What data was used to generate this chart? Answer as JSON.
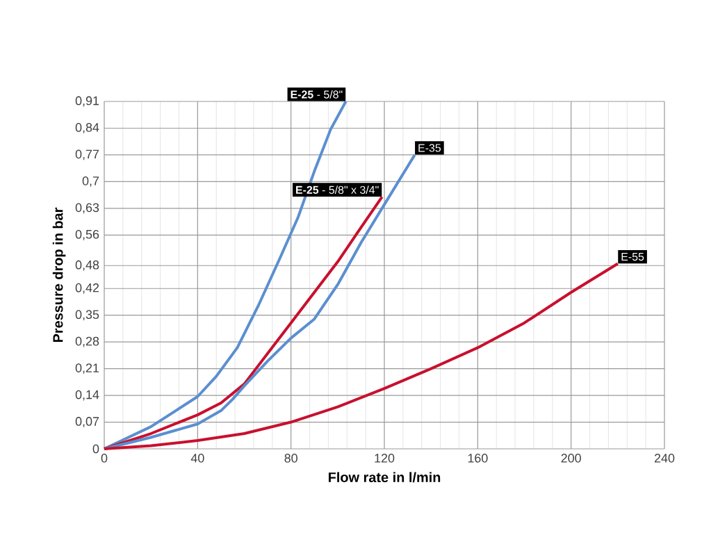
{
  "chart_data": {
    "type": "line",
    "xlabel": "Flow rate in l/min",
    "ylabel": "Pressure drop in bar",
    "xlim": [
      0,
      240
    ],
    "ylim": [
      0,
      0.91
    ],
    "xticks": [
      0,
      40,
      80,
      120,
      160,
      200,
      240
    ],
    "yticks": [
      {
        "value": 0,
        "label": "0"
      },
      {
        "value": 0.07,
        "label": "0,07"
      },
      {
        "value": 0.14,
        "label": "0,14"
      },
      {
        "value": 0.21,
        "label": "0,21"
      },
      {
        "value": 0.28,
        "label": "0,28"
      },
      {
        "value": 0.35,
        "label": "0,35"
      },
      {
        "value": 0.42,
        "label": "0,42"
      },
      {
        "value": 0.48,
        "label": "0,48"
      },
      {
        "value": 0.56,
        "label": "0,56"
      },
      {
        "value": 0.63,
        "label": "0,63"
      },
      {
        "value": 0.7,
        "label": "0,7"
      },
      {
        "value": 0.77,
        "label": "0,77"
      },
      {
        "value": 0.84,
        "label": "0,84"
      },
      {
        "value": 0.91,
        "label": "0,91"
      }
    ],
    "grid": true,
    "marker": "none",
    "line_style": "solid",
    "series": [
      {
        "name": "**E-25** - 5/8\"",
        "color": "#5b8fd0",
        "x": [
          0,
          20,
          40,
          48,
          57,
          66,
          75,
          83,
          90,
          97,
          103.5
        ],
        "values": [
          0,
          0.058,
          0.137,
          0.19,
          0.265,
          0.375,
          0.496,
          0.606,
          0.727,
          0.837,
          0.91
        ]
      },
      {
        "name": "**E-25** - 5/8\" x 3/4\"",
        "color": "#c8102e",
        "x": [
          0,
          20,
          40,
          50,
          60,
          70,
          80,
          90,
          100,
          110,
          119
        ],
        "values": [
          0,
          0.04,
          0.089,
          0.12,
          0.17,
          0.25,
          0.33,
          0.41,
          0.49,
          0.58,
          0.66
        ]
      },
      {
        "name": "E-35",
        "color": "#5b8fd0",
        "x": [
          0,
          20,
          40,
          50,
          55,
          60,
          70,
          80,
          90,
          100,
          110,
          120,
          133
        ],
        "values": [
          0,
          0.03,
          0.065,
          0.1,
          0.13,
          0.165,
          0.23,
          0.29,
          0.34,
          0.43,
          0.54,
          0.64,
          0.77
        ]
      },
      {
        "name": "E-55",
        "color": "#c8102e",
        "x": [
          0,
          20,
          40,
          60,
          80,
          100,
          120,
          140,
          160,
          180,
          200,
          220
        ],
        "values": [
          0,
          0.008,
          0.022,
          0.04,
          0.07,
          0.11,
          0.158,
          0.21,
          0.265,
          0.33,
          0.41,
          0.485
        ]
      }
    ]
  }
}
